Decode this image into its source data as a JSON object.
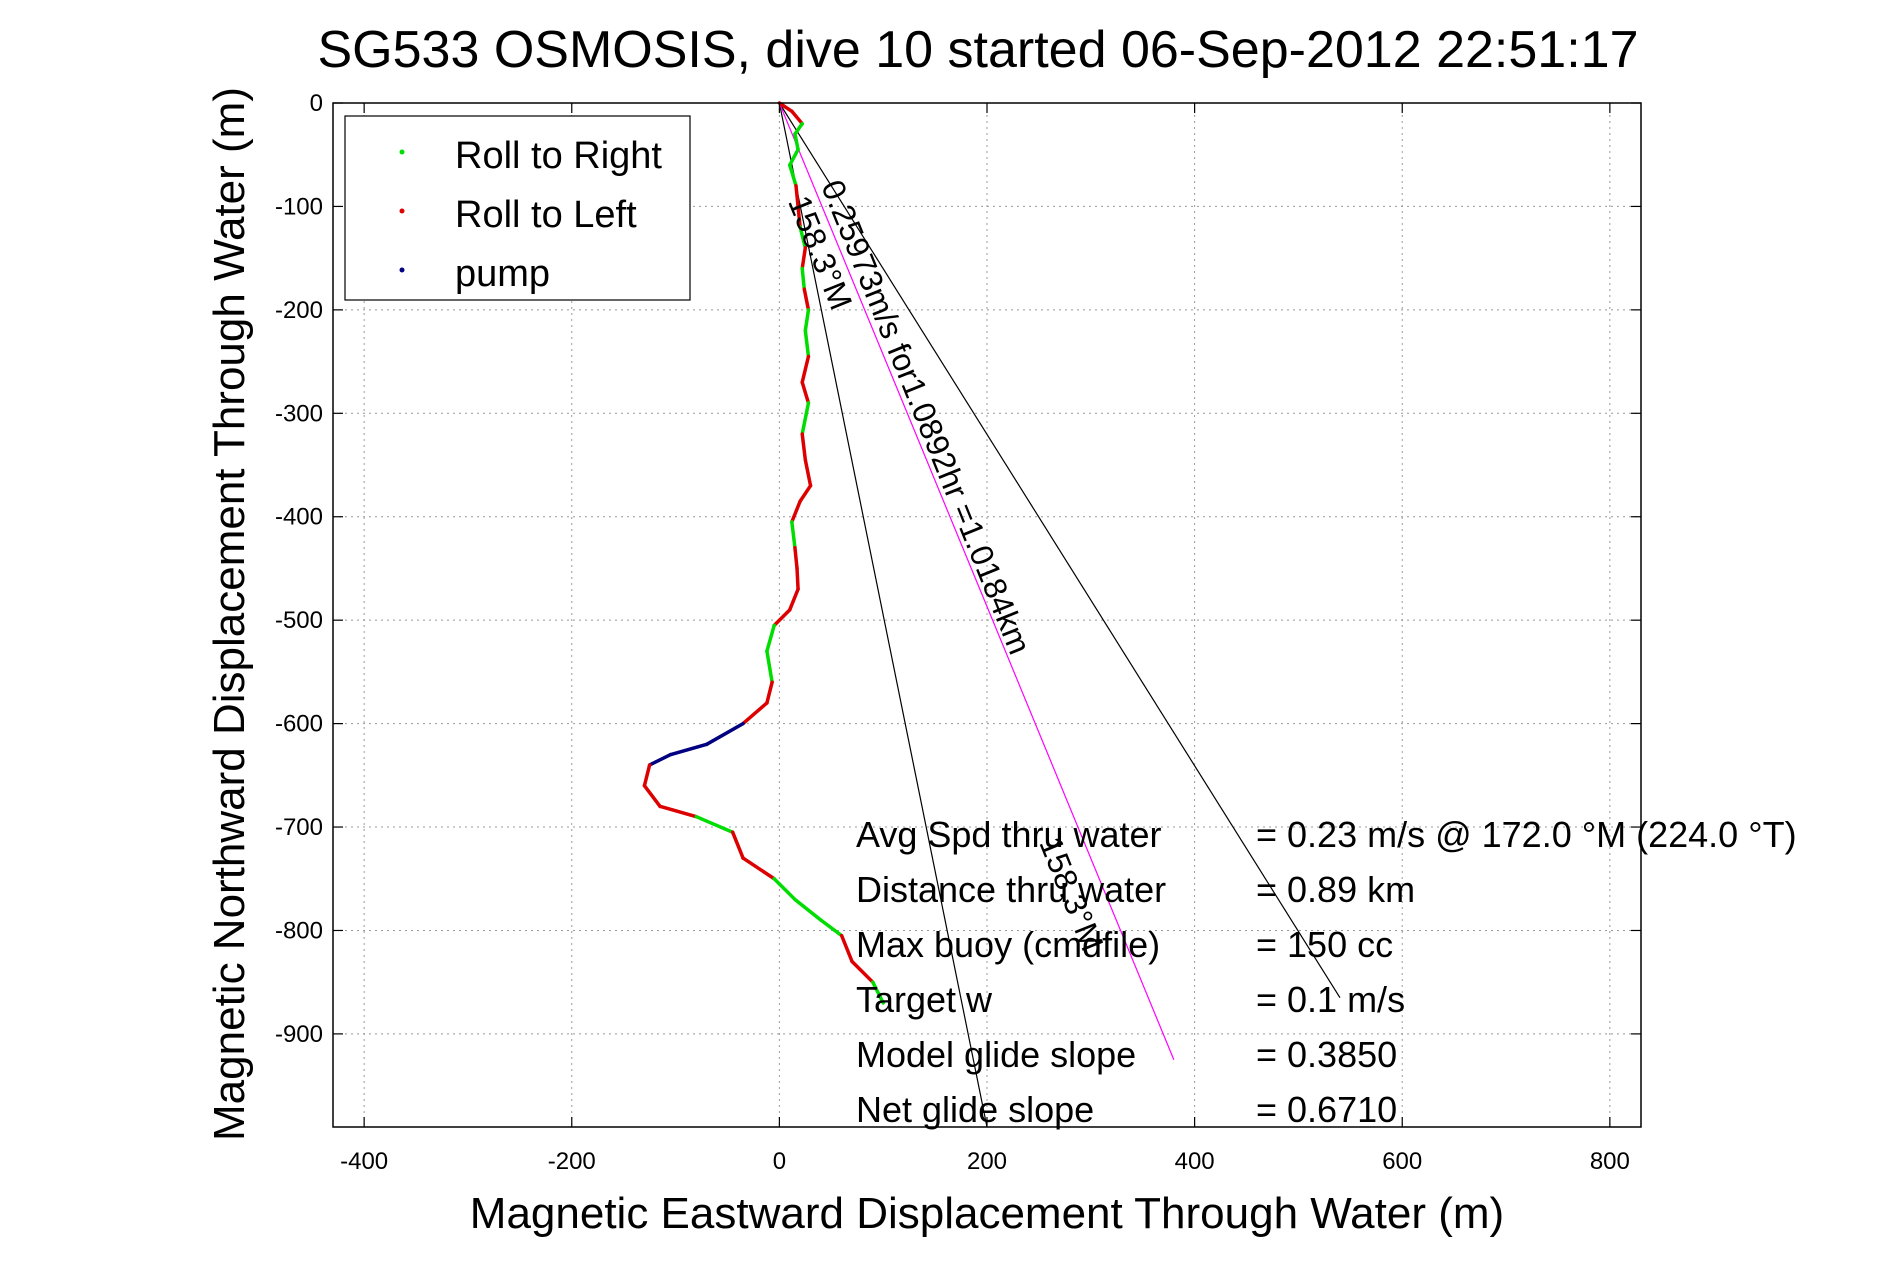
{
  "chart_data": {
    "type": "line",
    "title": "SG533 OSMOSIS, dive 10 started 06-Sep-2012 22:51:17",
    "xlabel": "Magnetic Eastward Displacement Through Water (m)",
    "ylabel": "Magnetic Northward Displacement Through Water (m)",
    "xlim": [
      -430,
      830
    ],
    "ylim": [
      -990,
      0
    ],
    "xticks": [
      -400,
      -200,
      0,
      200,
      400,
      600,
      800
    ],
    "yticks": [
      0,
      -100,
      -200,
      -300,
      -400,
      -500,
      -600,
      -700,
      -800,
      -900
    ],
    "grid": true,
    "legend": {
      "placement": "top-left",
      "entries": [
        {
          "label": "Roll to Right",
          "color": "#00dd00"
        },
        {
          "label": "Roll to Left",
          "color": "#dd0000"
        },
        {
          "label": "pump",
          "color": "#000080"
        }
      ]
    },
    "track": {
      "points": [
        [
          0,
          0
        ],
        [
          12,
          -8
        ],
        [
          22,
          -20
        ],
        [
          15,
          -30
        ],
        [
          18,
          -45
        ],
        [
          10,
          -60
        ],
        [
          16,
          -80
        ],
        [
          18,
          -100
        ],
        [
          20,
          -120
        ],
        [
          25,
          -140
        ],
        [
          22,
          -160
        ],
        [
          24,
          -180
        ],
        [
          28,
          -200
        ],
        [
          25,
          -220
        ],
        [
          28,
          -245
        ],
        [
          22,
          -270
        ],
        [
          28,
          -290
        ],
        [
          22,
          -320
        ],
        [
          25,
          -345
        ],
        [
          30,
          -370
        ],
        [
          20,
          -385
        ],
        [
          12,
          -405
        ],
        [
          15,
          -430
        ],
        [
          17,
          -450
        ],
        [
          18,
          -470
        ],
        [
          10,
          -490
        ],
        [
          -5,
          -505
        ],
        [
          -12,
          -530
        ],
        [
          -7,
          -560
        ],
        [
          -12,
          -580
        ],
        [
          -35,
          -600
        ],
        [
          -70,
          -620
        ],
        [
          -105,
          -630
        ],
        [
          -125,
          -640
        ],
        [
          -130,
          -660
        ],
        [
          -115,
          -680
        ],
        [
          -80,
          -690
        ],
        [
          -45,
          -705
        ],
        [
          -35,
          -730
        ],
        [
          -5,
          -750
        ],
        [
          15,
          -770
        ],
        [
          40,
          -790
        ],
        [
          60,
          -805
        ],
        [
          70,
          -830
        ],
        [
          90,
          -850
        ],
        [
          100,
          -870
        ]
      ],
      "segments": [
        {
          "from": 0,
          "to": 1,
          "mode": "left"
        },
        {
          "from": 1,
          "to": 2,
          "mode": "left"
        },
        {
          "from": 2,
          "to": 3,
          "mode": "right"
        },
        {
          "from": 3,
          "to": 4,
          "mode": "right"
        },
        {
          "from": 4,
          "to": 5,
          "mode": "right"
        },
        {
          "from": 5,
          "to": 6,
          "mode": "right"
        },
        {
          "from": 6,
          "to": 7,
          "mode": "left"
        },
        {
          "from": 7,
          "to": 8,
          "mode": "left"
        },
        {
          "from": 8,
          "to": 9,
          "mode": "right"
        },
        {
          "from": 9,
          "to": 10,
          "mode": "left"
        },
        {
          "from": 10,
          "to": 11,
          "mode": "right"
        },
        {
          "from": 11,
          "to": 12,
          "mode": "left"
        },
        {
          "from": 12,
          "to": 13,
          "mode": "right"
        },
        {
          "from": 13,
          "to": 14,
          "mode": "right"
        },
        {
          "from": 14,
          "to": 15,
          "mode": "left"
        },
        {
          "from": 15,
          "to": 16,
          "mode": "left"
        },
        {
          "from": 16,
          "to": 17,
          "mode": "right"
        },
        {
          "from": 17,
          "to": 18,
          "mode": "left"
        },
        {
          "from": 18,
          "to": 19,
          "mode": "left"
        },
        {
          "from": 19,
          "to": 20,
          "mode": "left"
        },
        {
          "from": 20,
          "to": 21,
          "mode": "left"
        },
        {
          "from": 21,
          "to": 22,
          "mode": "right"
        },
        {
          "from": 22,
          "to": 23,
          "mode": "left"
        },
        {
          "from": 23,
          "to": 24,
          "mode": "left"
        },
        {
          "from": 24,
          "to": 25,
          "mode": "left"
        },
        {
          "from": 25,
          "to": 26,
          "mode": "left"
        },
        {
          "from": 26,
          "to": 27,
          "mode": "right"
        },
        {
          "from": 27,
          "to": 28,
          "mode": "right"
        },
        {
          "from": 28,
          "to": 29,
          "mode": "left"
        },
        {
          "from": 29,
          "to": 30,
          "mode": "left"
        },
        {
          "from": 30,
          "to": 31,
          "mode": "pump"
        },
        {
          "from": 31,
          "to": 32,
          "mode": "pump"
        },
        {
          "from": 32,
          "to": 33,
          "mode": "pump"
        },
        {
          "from": 33,
          "to": 34,
          "mode": "left"
        },
        {
          "from": 34,
          "to": 35,
          "mode": "left"
        },
        {
          "from": 35,
          "to": 36,
          "mode": "left"
        },
        {
          "from": 36,
          "to": 37,
          "mode": "right"
        },
        {
          "from": 37,
          "to": 38,
          "mode": "left"
        },
        {
          "from": 38,
          "to": 39,
          "mode": "left"
        },
        {
          "from": 39,
          "to": 40,
          "mode": "right"
        },
        {
          "from": 40,
          "to": 41,
          "mode": "right"
        },
        {
          "from": 41,
          "to": 42,
          "mode": "right"
        },
        {
          "from": 42,
          "to": 43,
          "mode": "left"
        },
        {
          "from": 43,
          "to": 44,
          "mode": "left"
        },
        {
          "from": 44,
          "to": 45,
          "mode": "right"
        }
      ]
    },
    "reference_lines": [
      {
        "name": "heading-line-1",
        "from": [
          0,
          0
        ],
        "to": [
          200,
          -990
        ],
        "color": "#000000"
      },
      {
        "name": "heading-line-2",
        "from": [
          0,
          0
        ],
        "to": [
          540,
          -865
        ],
        "color": "#000000"
      },
      {
        "name": "displacement-line",
        "from": [
          0,
          0
        ],
        "to": [
          380,
          -925
        ],
        "color": "#ff00ff"
      }
    ],
    "annotations": [
      {
        "text": "0.25973m/s for1.0892hr =1.0184km",
        "at": [
          40,
          -80
        ],
        "angle": 68
      },
      {
        "text": "158.3°M",
        "at": [
          8,
          -95
        ],
        "angle": 68
      },
      {
        "text": "158.3°M",
        "at": [
          250,
          -715
        ],
        "angle": 68
      }
    ],
    "stats": {
      "labels": [
        "Avg Spd thru water",
        "Distance thru water",
        "Max buoy (cmdfile)",
        "Target w",
        "Model glide slope",
        "Net glide slope"
      ],
      "values": [
        "=  0.23 m/s @ 172.0 °M (224.0 °T)",
        "=  0.89 km",
        "= 150 cc",
        "= 0.1 m/s",
        "= 0.3850",
        "= 0.6710"
      ]
    }
  }
}
